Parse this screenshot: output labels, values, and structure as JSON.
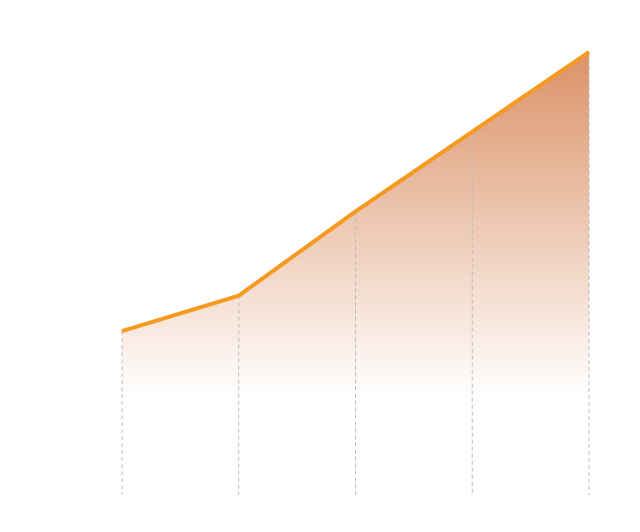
{
  "chart_data": {
    "type": "area",
    "categories": [
      null,
      null,
      null,
      null,
      null
    ],
    "values": [
      37,
      45,
      64,
      82,
      100
    ],
    "ylim": [
      0,
      100
    ],
    "color": "#f5991f",
    "area_color": "#d98c5f",
    "drop_lines": true
  }
}
